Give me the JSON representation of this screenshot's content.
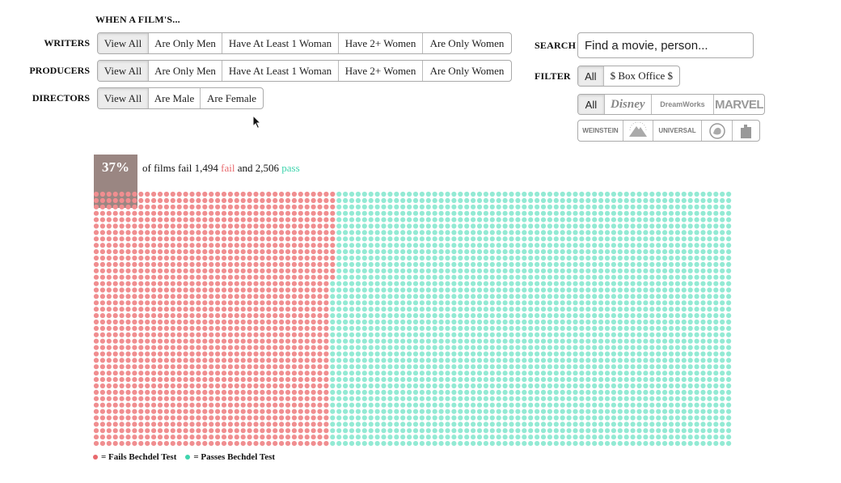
{
  "header": {
    "title": "WHEN A FILM'S..."
  },
  "writers": {
    "label": "WRITERS",
    "options": [
      "View All",
      "Are Only Men",
      "Have At Least 1 Woman",
      "Have 2+ Women",
      "Are Only Women"
    ],
    "selected": "View All"
  },
  "producers": {
    "label": "PRODUCERS",
    "options": [
      "View All",
      "Are Only Men",
      "Have At Least 1 Woman",
      "Have 2+ Women",
      "Are Only Women"
    ],
    "selected": "View All"
  },
  "directors": {
    "label": "DIRECTORS",
    "options": [
      "View All",
      "Are Male",
      "Are Female"
    ],
    "selected": "View All"
  },
  "search": {
    "label": "SEARCH",
    "placeholder": "Find a movie, person..."
  },
  "filter": {
    "label": "FILTER",
    "options": [
      "All",
      "$ Box Office $"
    ],
    "selected": "All"
  },
  "studios": {
    "row1": [
      "All",
      "Disney",
      "DreamWorks",
      "MARVEL"
    ],
    "row2": [
      "WEINSTEIN",
      "Paramount",
      "UNIVERSAL",
      "MGM",
      "Lionsgate"
    ],
    "selected": "All"
  },
  "summary": {
    "percent": "37%",
    "text_prefix": "of films fail",
    "fail_count": "1,494",
    "fail_word": "fail",
    "and_word": "and",
    "pass_count": "2,506",
    "pass_word": "pass"
  },
  "chart": {
    "fail_count": 1494,
    "pass_count": 2506,
    "fail_color": "#f08e90",
    "pass_color": "#93ead4"
  },
  "legend": {
    "fail_label": "= Fails Bechdel Test",
    "pass_label": "= Passes Bechdel Test",
    "fail_color": "#e8696d",
    "pass_color": "#3fd4ad"
  }
}
